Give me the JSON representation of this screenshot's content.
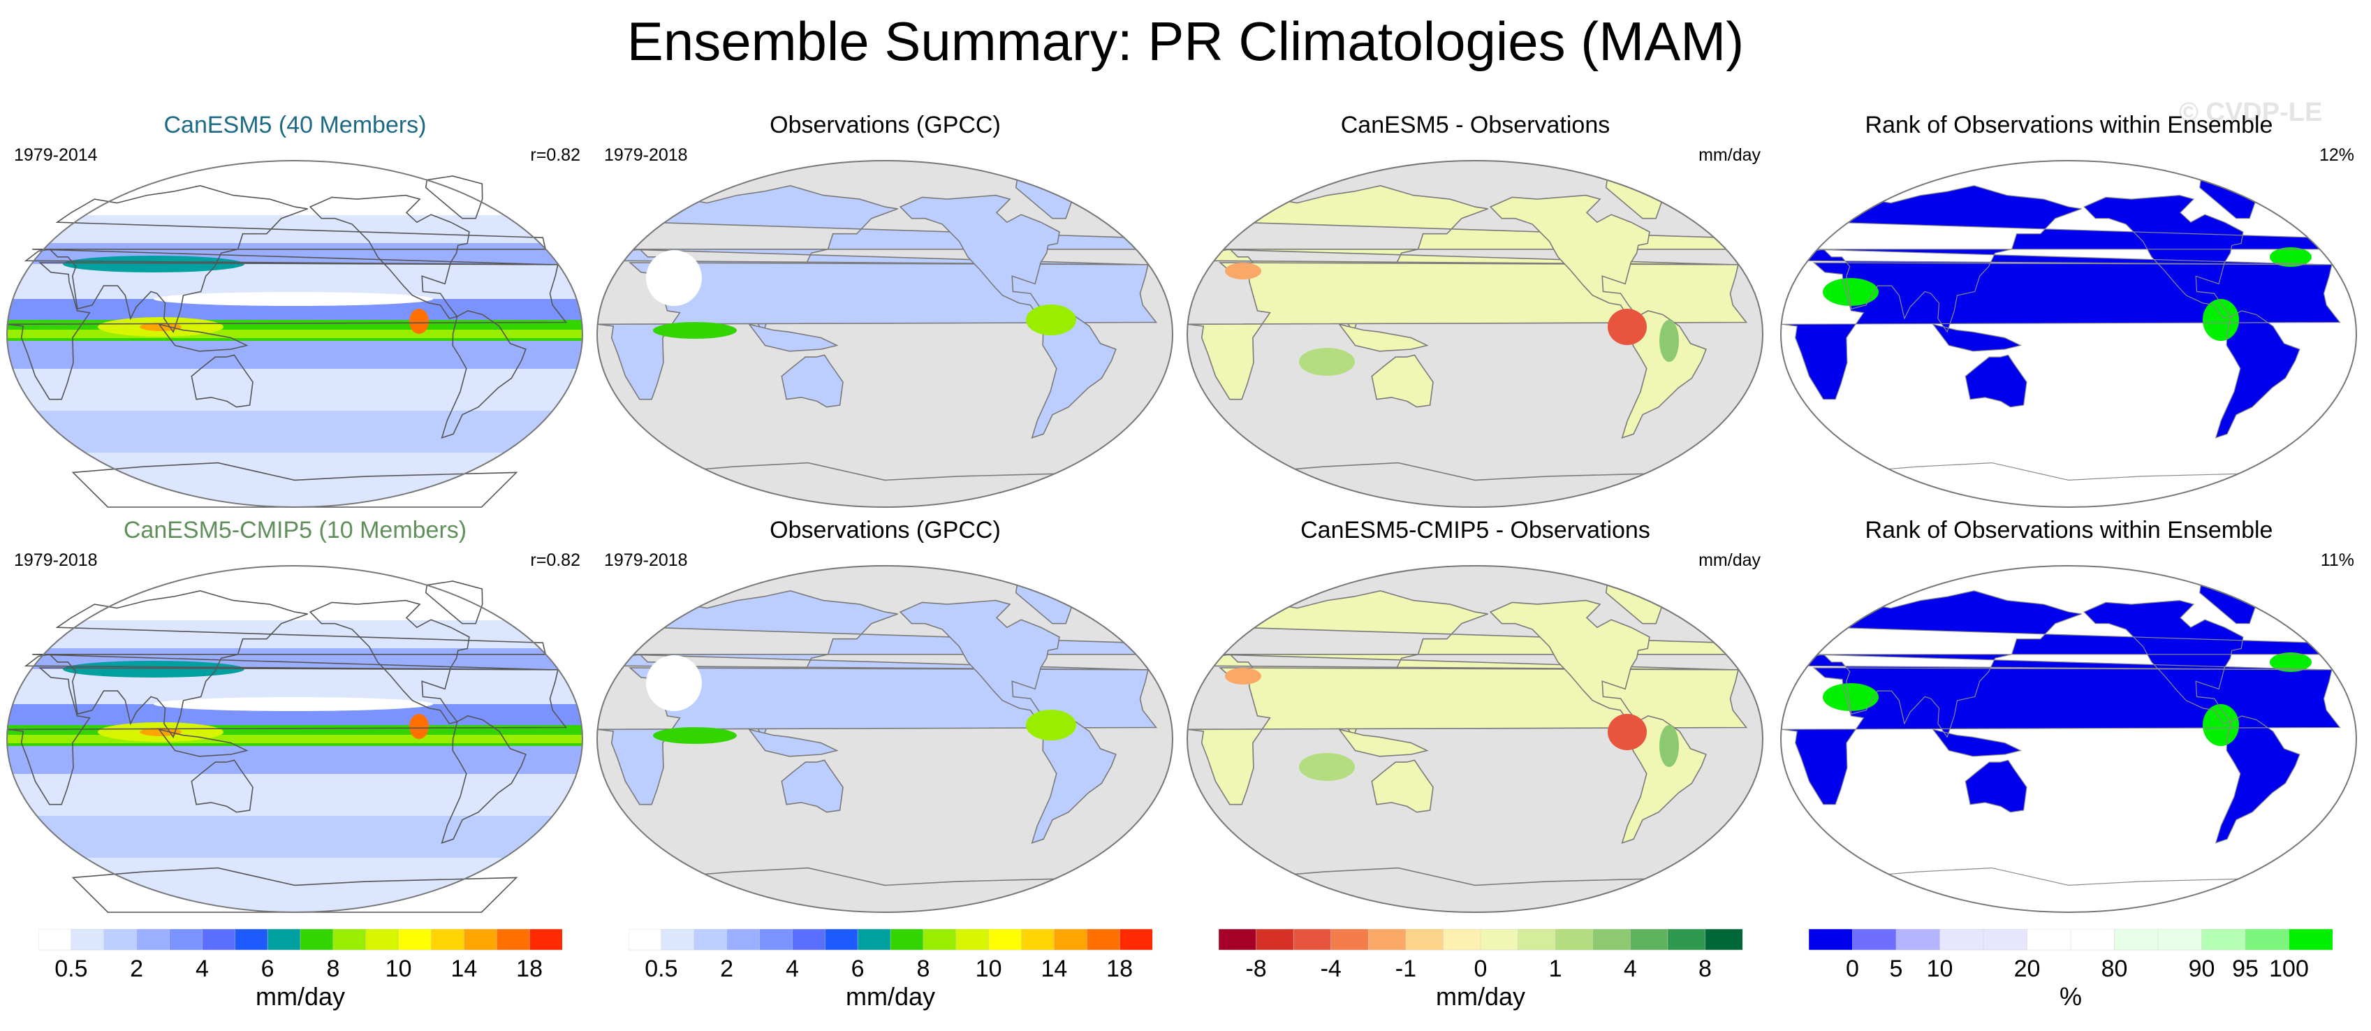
{
  "title": "Ensemble Summary: PR Climatologies (MAM)",
  "watermark": "© CVDP-LE",
  "colors": {
    "model1_title": "#1d6a86",
    "model2_title": "#5f8f5a",
    "land": "#e2e2e2",
    "coast": "#7a7a7a",
    "rank_low": "#0000ee",
    "rank_high": "#00f000"
  },
  "panels": [
    {
      "title": "CanESM5 (40 Members)",
      "title_color": "#1d6a86",
      "left": "1979-2014",
      "right": "r=0.82",
      "type": "model"
    },
    {
      "title": "Observations (GPCC)",
      "left": "1979-2018",
      "right": "",
      "type": "obs"
    },
    {
      "title": "CanESM5 - Observations",
      "left": "",
      "right": "mm/day",
      "type": "diff"
    },
    {
      "title": "Rank of Observations within Ensemble",
      "left": "",
      "right": "12%",
      "type": "rank"
    },
    {
      "title": "CanESM5-CMIP5 (10 Members)",
      "title_color": "#5f8f5a",
      "left": "1979-2018",
      "right": "r=0.82",
      "type": "model"
    },
    {
      "title": "Observations (GPCC)",
      "left": "1979-2018",
      "right": "",
      "type": "obs"
    },
    {
      "title": "CanESM5-CMIP5 - Observations",
      "left": "",
      "right": "mm/day",
      "type": "diff"
    },
    {
      "title": "Rank of Observations within Ensemble",
      "left": "",
      "right": "11%",
      "type": "rank"
    }
  ],
  "colorbars": [
    {
      "units": "mm/day",
      "colors": [
        "#ffffff",
        "#dde6ff",
        "#bccdff",
        "#9aafff",
        "#7b93ff",
        "#5b6fff",
        "#1e5bff",
        "#00a0a0",
        "#33d400",
        "#99ee00",
        "#d8f500",
        "#ffff00",
        "#ffd400",
        "#ffa500",
        "#ff7000",
        "#ff2a00"
      ],
      "labels": [
        {
          "pos": 1,
          "text": "0.5"
        },
        {
          "pos": 3,
          "text": "2"
        },
        {
          "pos": 5,
          "text": "4"
        },
        {
          "pos": 7,
          "text": "6"
        },
        {
          "pos": 9,
          "text": "8"
        },
        {
          "pos": 11,
          "text": "10"
        },
        {
          "pos": 13,
          "text": "14"
        },
        {
          "pos": 15,
          "text": "18"
        }
      ]
    },
    {
      "units": "mm/day",
      "colors": [
        "#ffffff",
        "#dde6ff",
        "#bccdff",
        "#9aafff",
        "#7b93ff",
        "#5b6fff",
        "#1e5bff",
        "#00a0a0",
        "#33d400",
        "#99ee00",
        "#d8f500",
        "#ffff00",
        "#ffd400",
        "#ffa500",
        "#ff7000",
        "#ff2a00"
      ],
      "labels": [
        {
          "pos": 1,
          "text": "0.5"
        },
        {
          "pos": 3,
          "text": "2"
        },
        {
          "pos": 5,
          "text": "4"
        },
        {
          "pos": 7,
          "text": "6"
        },
        {
          "pos": 9,
          "text": "8"
        },
        {
          "pos": 11,
          "text": "10"
        },
        {
          "pos": 13,
          "text": "14"
        },
        {
          "pos": 15,
          "text": "18"
        }
      ]
    },
    {
      "units": "mm/day",
      "colors": [
        "#a50026",
        "#d73027",
        "#e8553f",
        "#f47d4c",
        "#f9a868",
        "#fdd38a",
        "#fef0b0",
        "#f0f6b4",
        "#d5ec9a",
        "#b4dd80",
        "#8cc970",
        "#5fb35e",
        "#2f9a4f",
        "#006837"
      ],
      "labels": [
        {
          "pos": 1,
          "text": "-8"
        },
        {
          "pos": 3,
          "text": "-4"
        },
        {
          "pos": 5,
          "text": "-1"
        },
        {
          "pos": 7,
          "text": "0"
        },
        {
          "pos": 9,
          "text": "1"
        },
        {
          "pos": 11,
          "text": "4"
        },
        {
          "pos": 13,
          "text": "8"
        }
      ]
    },
    {
      "units": "%",
      "colors": [
        "#0000ee",
        "#6e6eff",
        "#b4b4ff",
        "#e6e6ff",
        "#e6e6ff",
        "#ffffff",
        "#ffffff",
        "#e6ffe6",
        "#e6ffe6",
        "#b4ffb4",
        "#7cf57c",
        "#00f000"
      ],
      "labels": [
        {
          "pos": 1,
          "text": "0"
        },
        {
          "pos": 2,
          "text": "5"
        },
        {
          "pos": 3,
          "text": "10"
        },
        {
          "pos": 5,
          "text": "20"
        },
        {
          "pos": 7,
          "text": "80"
        },
        {
          "pos": 9,
          "text": "90"
        },
        {
          "pos": 10,
          "text": "95"
        },
        {
          "pos": 11,
          "text": "100"
        }
      ]
    }
  ]
}
